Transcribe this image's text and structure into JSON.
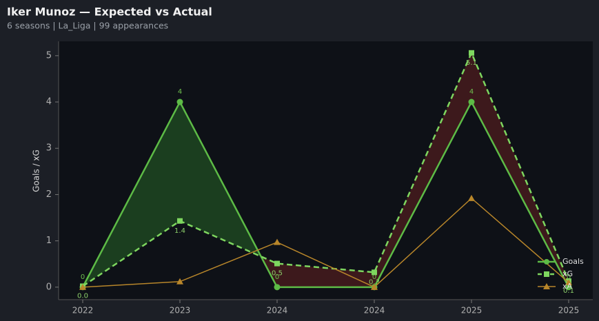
{
  "chart_data": {
    "type": "line",
    "title": "Iker Munoz — Expected vs Actual",
    "subtitle": "6 seasons | La_Liga | 99 appearances",
    "y_label": "Goals / xG",
    "categories": [
      "2022",
      "2023",
      "2024",
      "2024",
      "2025",
      "2025"
    ],
    "series": [
      {
        "name": "Goals",
        "color": "#5dbb46",
        "marker": "circle",
        "dash": false,
        "width": 2.5,
        "labels": true,
        "values": [
          0,
          4,
          0,
          0,
          4,
          0
        ]
      },
      {
        "name": "xG",
        "color": "#7ed65f",
        "marker": "square",
        "dash": true,
        "width": 2.5,
        "labels": true,
        "values": [
          0.02,
          1.43,
          0.51,
          0.32,
          5.06,
          0.13
        ],
        "value_labels": [
          "0.0",
          "1.4",
          "0.5",
          "0.3",
          "5.1",
          "0.1"
        ]
      },
      {
        "name": "xA",
        "color": "#b8862a",
        "marker": "triangle",
        "dash": false,
        "width": 1.5,
        "labels": false,
        "values": [
          0,
          0.12,
          0.97,
          0,
          1.92,
          0.1
        ]
      }
    ],
    "fill_between": {
      "over_color": "#1f4a22",
      "under_color": "#4a1c1e"
    },
    "ylim": [
      -0.27,
      5.31
    ],
    "yticks": [
      0,
      1,
      2,
      3,
      4,
      5
    ],
    "legend": "lower right"
  }
}
